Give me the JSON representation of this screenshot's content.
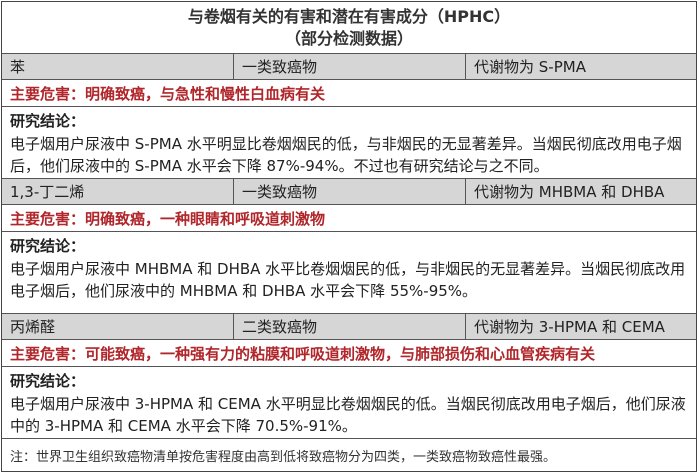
{
  "title": {
    "line1": "与卷烟有关的有害和潜在有害成分（HPHC）",
    "line2": "（部分检测数据）"
  },
  "sections": [
    {
      "substance": "苯",
      "category": "一类致癌物",
      "metabolite": "代谢物为 S-PMA",
      "hazard": "主要危害：明确致癌，与急性和慢性白血病有关",
      "research_label": "研究结论：",
      "research_text": "电子烟用户尿液中 S-PMA 水平明显比卷烟烟民的低，与非烟民的无显著差异。当烟民彻底改用电子烟后，他们尿液中的 S-PMA 水平会下降 87%-94%。不过也有研究结论与之不同。"
    },
    {
      "substance": "1,3-丁二烯",
      "category": "一类致癌物",
      "metabolite": "代谢物为 MHBMA 和 DHBA",
      "hazard": "主要危害：明确致癌，一种眼睛和呼吸道刺激物",
      "research_label": "研究结论：",
      "research_text": "电子烟用户尿液中 MHBMA 和 DHBA 水平比卷烟烟民的低，与非烟民的无显著差异。当烟民彻底改用电子烟后，他们尿液中的 MHBMA 和 DHBA 水平会下降 55%-95%。"
    },
    {
      "substance": "丙烯醛",
      "category": "二类致癌物",
      "metabolite": "代谢物为 3-HPMA 和 CEMA",
      "hazard": "主要危害：可能致癌，一种强有力的粘膜和呼吸道刺激物，与肺部损伤和心血管疾病有关",
      "research_label": "研究结论：",
      "research_text": "电子烟用户尿液中 3-HPMA 和 CEMA 水平明显比卷烟烟民的低。当烟民彻底改用电子烟后，他们尿液中的 3-HPMA 和 CEMA 水平会下降 70.5%-91%。"
    }
  ],
  "note": "注：世界卫生组织致癌物清单按危害程度由高到低将致癌物分为四类，一类致癌物致癌性最强。",
  "colors": {
    "hazard": "#b0262a",
    "header_bg": "#d6d6d6"
  }
}
